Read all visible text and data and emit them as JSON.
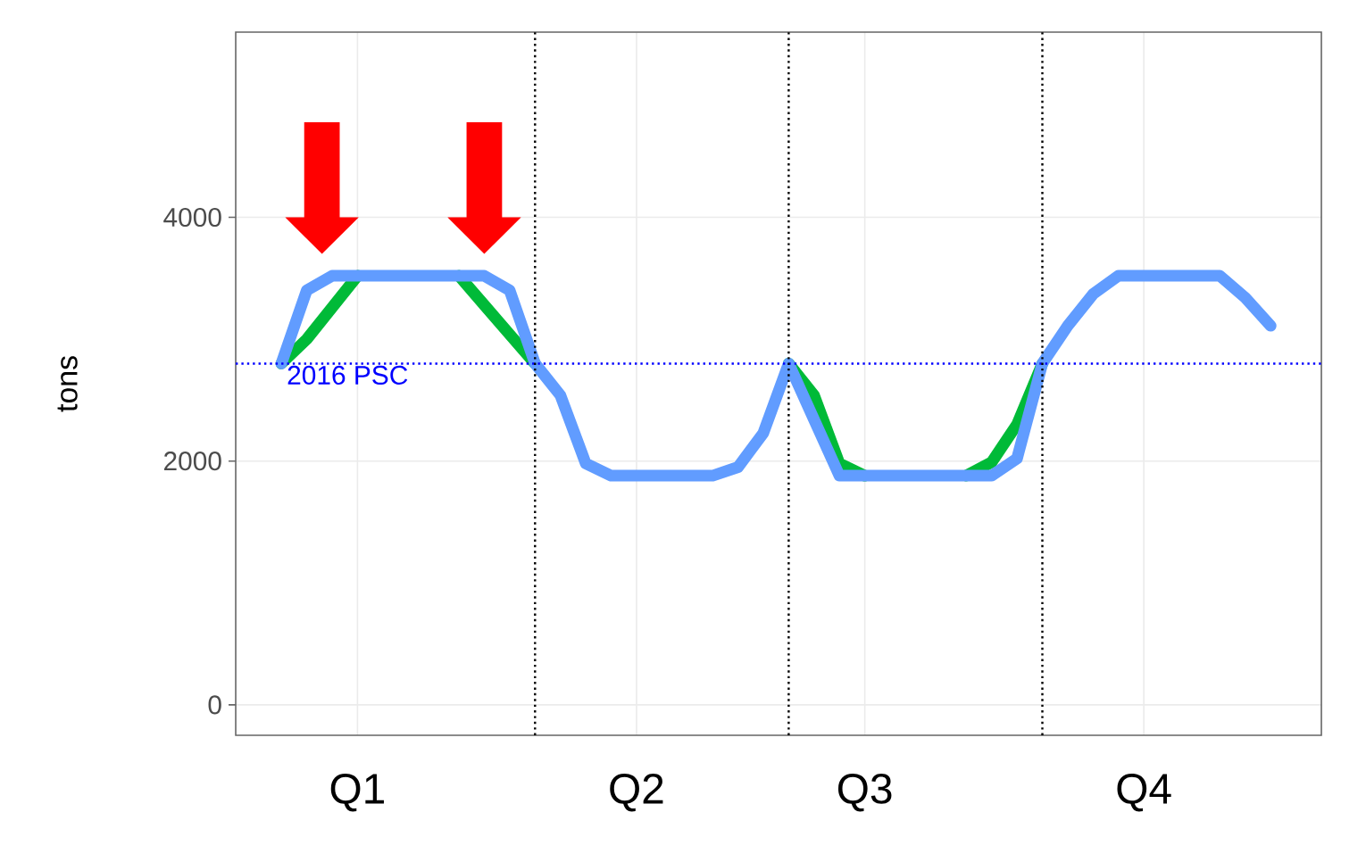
{
  "chart_data": {
    "type": "line",
    "ylabel": "tons",
    "categories": [
      null,
      null,
      null,
      "Q1",
      null,
      null,
      null,
      null,
      null,
      null,
      null,
      null,
      null,
      null,
      "Q2",
      null,
      null,
      null,
      null,
      null,
      null,
      null,
      null,
      "Q3",
      null,
      null,
      null,
      null,
      null,
      null,
      null,
      null,
      null,
      null,
      "Q4",
      null,
      null,
      null,
      null,
      null
    ],
    "series": [
      {
        "color": "#00ba38",
        "values": [
          2800,
          3000,
          3260,
          3520,
          null,
          null,
          null,
          3520,
          3280,
          3040,
          2800,
          null,
          null,
          null,
          null,
          null,
          null,
          null,
          null,
          null,
          2800,
          2540,
          1980,
          1880,
          null,
          null,
          null,
          1880,
          1990,
          2300,
          2800,
          null,
          null,
          null,
          null,
          null,
          null,
          null,
          null,
          null
        ]
      },
      {
        "color": "#619cff",
        "values": [
          2800,
          3400,
          3520,
          3520,
          3520,
          3520,
          3520,
          3520,
          3520,
          3400,
          2800,
          2540,
          1980,
          1880,
          1880,
          1880,
          1880,
          1880,
          1950,
          2230,
          2800,
          2340,
          1880,
          1880,
          1880,
          1880,
          1880,
          1880,
          1880,
          2020,
          2800,
          3110,
          3370,
          3520,
          3520,
          3520,
          3520,
          3520,
          3340,
          3110
        ]
      }
    ],
    "ylim": [
      -250,
      5520
    ],
    "yticks": [
      0,
      2000,
      4000
    ],
    "ref_lines": [
      {
        "axis": "y",
        "value": 2800,
        "label": "2016 PSC",
        "color": "#0000ff",
        "line_style": "dotted"
      }
    ],
    "grid": true,
    "line_style": "solid"
  }
}
